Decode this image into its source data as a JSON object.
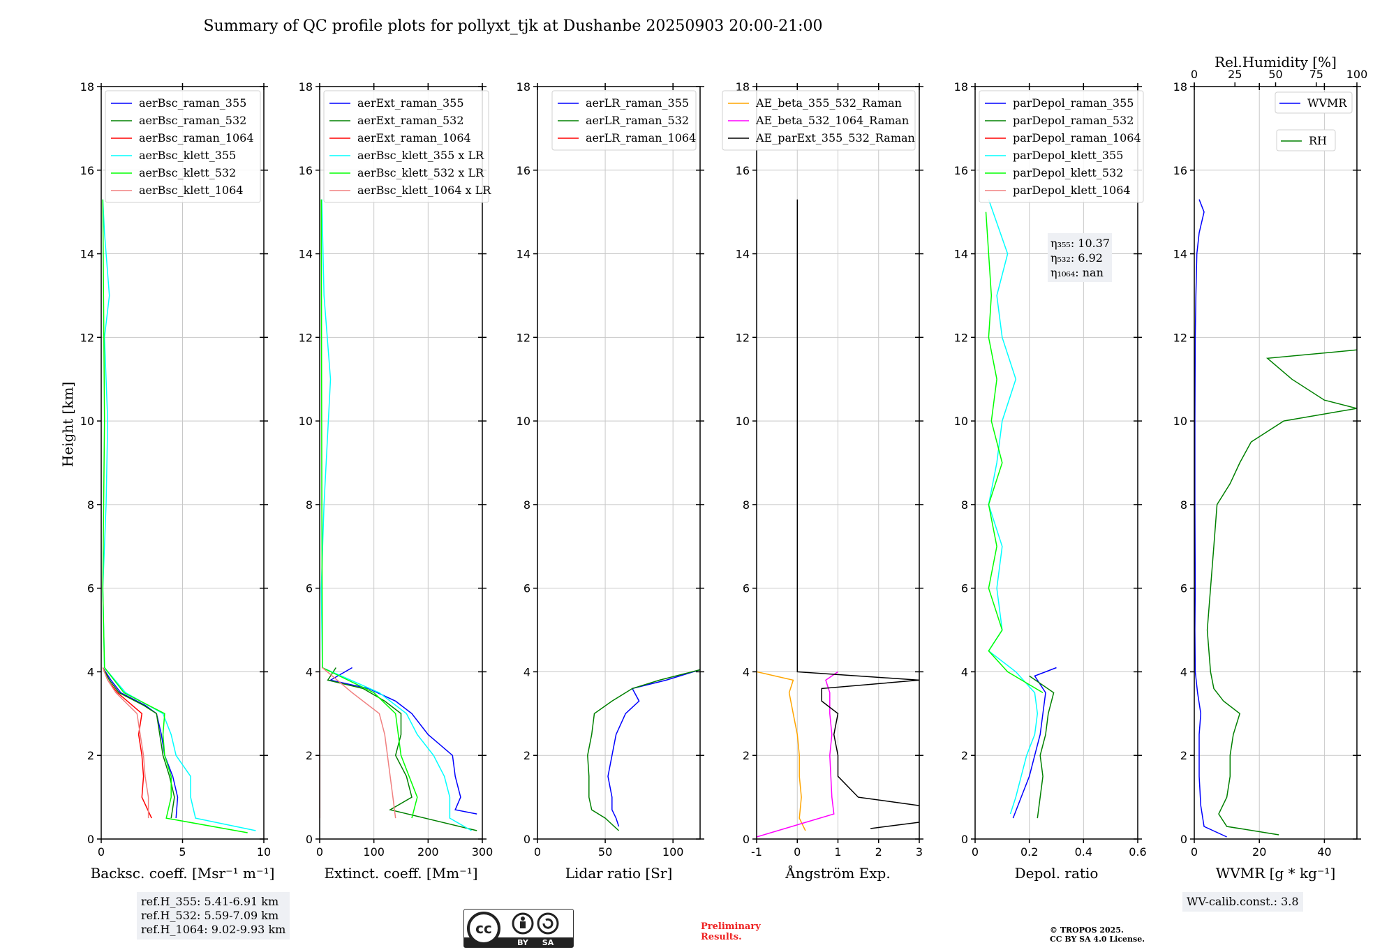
{
  "chart_data": {
    "type": "line",
    "title": "Summary of QC profile plots for pollyxt_tjk at Dushanbe 20250903 20:00-21:00",
    "ylabel": "Height [km]",
    "ylim": [
      0,
      18
    ],
    "yticks": [
      0,
      2,
      4,
      6,
      8,
      10,
      12,
      14,
      16,
      18
    ],
    "grid": true,
    "panels": [
      {
        "id": "bsc",
        "xlabel": "Backsc. coeff. [Msr⁻¹ m⁻¹]",
        "xlim": [
          0,
          10
        ],
        "xticks": [
          0,
          5,
          10
        ],
        "legend_loc": "upper-left",
        "series": [
          {
            "name": "aerBsc_raman_355",
            "color": "#0000ff",
            "h": [
              0.5,
              1.0,
              1.5,
              2.0,
              2.5,
              3.0,
              3.2,
              3.5,
              3.8,
              4.1
            ],
            "x": [
              4.6,
              4.7,
              4.4,
              3.9,
              3.7,
              3.4,
              2.7,
              1.2,
              0.6,
              0.1
            ]
          },
          {
            "name": "aerBsc_raman_532",
            "color": "#008000",
            "h": [
              0.5,
              1.0,
              1.5,
              2.0,
              2.5,
              3.0,
              3.2,
              3.5,
              3.8,
              4.1
            ],
            "x": [
              4.3,
              4.5,
              4.2,
              3.8,
              3.6,
              3.4,
              2.6,
              1.1,
              0.5,
              0.1
            ]
          },
          {
            "name": "aerBsc_raman_1064",
            "color": "#ff0000",
            "h": [
              0.5,
              1.0,
              1.5,
              2.0,
              2.5,
              3.0,
              3.5,
              3.8,
              4.1
            ],
            "x": [
              3.1,
              2.5,
              2.6,
              2.5,
              2.3,
              2.5,
              1.0,
              0.4,
              0.1
            ]
          },
          {
            "name": "aerBsc_klett_355",
            "color": "#00ffff",
            "h": [
              0.2,
              0.5,
              1.0,
              1.5,
              2.0,
              2.5,
              3.0,
              3.5,
              4.1,
              6.0,
              8.0,
              10.0,
              12.0,
              13.0,
              14.5,
              15.3
            ],
            "x": [
              9.5,
              5.8,
              5.5,
              5.5,
              4.6,
              4.3,
              3.8,
              1.5,
              0.2,
              0.1,
              0.3,
              0.4,
              0.2,
              0.5,
              0.2,
              0.1
            ]
          },
          {
            "name": "aerBsc_klett_532",
            "color": "#00ff00",
            "h": [
              0.15,
              0.5,
              1.0,
              1.5,
              2.0,
              2.5,
              3.0,
              3.5,
              4.1,
              6.0,
              10.0,
              15.3
            ],
            "x": [
              9.0,
              4.0,
              4.3,
              4.3,
              3.9,
              3.8,
              3.9,
              1.4,
              0.2,
              0.1,
              0.2,
              0.1
            ]
          },
          {
            "name": "aerBsc_klett_1064",
            "color": "#f08080",
            "h": [
              0.5,
              1.0,
              1.5,
              2.0,
              2.5,
              3.0,
              3.5,
              3.8,
              4.1
            ],
            "x": [
              2.9,
              2.9,
              2.7,
              2.6,
              2.4,
              2.2,
              0.9,
              0.4,
              0.1
            ]
          }
        ],
        "notes": []
      },
      {
        "id": "ext",
        "xlabel": "Extinct. coeff. [Mm⁻¹]",
        "xlim": [
          0,
          300
        ],
        "xticks": [
          0,
          100,
          200,
          300
        ],
        "legend_loc": "upper-left",
        "series": [
          {
            "name": "aerExt_raman_355",
            "color": "#0000ff",
            "h": [
              0.6,
              0.7,
              1.0,
              1.5,
              2.0,
              2.5,
              3.0,
              3.3,
              3.6,
              3.8,
              4.1
            ],
            "x": [
              290,
              250,
              260,
              250,
              245,
              200,
              170,
              140,
              90,
              20,
              60
            ]
          },
          {
            "name": "aerExt_raman_532",
            "color": "#008000",
            "h": [
              0.2,
              0.7,
              1.0,
              1.5,
              2.0,
              2.5,
              3.0,
              3.3,
              3.6,
              3.8,
              4.1
            ],
            "x": [
              290,
              130,
              170,
              160,
              140,
              150,
              150,
              120,
              80,
              15,
              30
            ]
          },
          {
            "name": "aerExt_raman_1064",
            "color": "#ff0000",
            "h": [
              0.5,
              4.0
            ],
            "x": [
              0,
              0
            ]
          },
          {
            "name": "aerBsc_klett_355 x LR",
            "color": "#00ffff",
            "h": [
              0.2,
              0.5,
              1.0,
              1.5,
              2.0,
              2.5,
              3.0,
              3.5,
              4.1,
              6.0,
              8.0,
              11.0,
              13.0,
              15.3
            ],
            "x": [
              280,
              240,
              240,
              230,
              210,
              180,
              160,
              110,
              5,
              3,
              8,
              20,
              8,
              4
            ]
          },
          {
            "name": "aerBsc_klett_532 x LR",
            "color": "#00ff00",
            "h": [
              0.5,
              1.0,
              1.5,
              2.0,
              2.5,
              3.0,
              3.5,
              4.1,
              8.0,
              15.3
            ],
            "x": [
              170,
              180,
              165,
              150,
              145,
              140,
              100,
              5,
              4,
              3
            ]
          },
          {
            "name": "aerBsc_klett_1064 x LR",
            "color": "#f08080",
            "h": [
              0.5,
              1.0,
              1.5,
              2.0,
              2.5,
              3.0,
              3.5,
              4.1
            ],
            "x": [
              140,
              135,
              130,
              125,
              120,
              110,
              60,
              5
            ]
          }
        ],
        "notes": []
      },
      {
        "id": "lr",
        "xlabel": "Lidar ratio [Sr]",
        "xlim": [
          0,
          120
        ],
        "xticks": [
          0,
          50,
          100
        ],
        "legend_loc": "upper-right",
        "series": [
          {
            "name": "aerLR_raman_355",
            "color": "#0000ff",
            "h": [
              0.3,
              0.5,
              0.7,
              1.0,
              1.5,
              2.0,
              2.5,
              3.0,
              3.3,
              3.6,
              3.8,
              4.05
            ],
            "x": [
              60,
              58,
              55,
              55,
              52,
              55,
              58,
              65,
              75,
              70,
              95,
              120
            ]
          },
          {
            "name": "aerLR_raman_532",
            "color": "#008000",
            "h": [
              0.2,
              0.5,
              0.7,
              1.0,
              1.5,
              2.0,
              2.5,
              3.0,
              3.3,
              3.6,
              3.8,
              4.05
            ],
            "x": [
              60,
              50,
              40,
              38,
              38,
              37,
              40,
              42,
              55,
              70,
              90,
              120
            ]
          },
          {
            "name": "aerLR_raman_1064",
            "color": "#ff0000",
            "h": [],
            "x": []
          }
        ],
        "notes": []
      },
      {
        "id": "ae",
        "xlabel": "Ångström Exp.",
        "xlim": [
          -1,
          3
        ],
        "xticks": [
          -1,
          0,
          1,
          2,
          3
        ],
        "legend_loc": "upper-right",
        "series": [
          {
            "name": "AE_beta_355_532_Raman",
            "color": "#ffa500",
            "h": [
              0.2,
              0.5,
              1.0,
              1.5,
              2.0,
              2.5,
              3.0,
              3.5,
              3.8,
              4.0
            ],
            "x": [
              0.2,
              0.05,
              0.1,
              0.05,
              0.05,
              0.0,
              -0.1,
              -0.2,
              -0.1,
              -1.0
            ]
          },
          {
            "name": "AE_beta_532_1064_Raman",
            "color": "#ff00ff",
            "h": [
              0.05,
              0.6,
              1.0,
              2.0,
              2.5,
              3.0,
              3.5,
              3.8,
              4.0
            ],
            "x": [
              -1.0,
              0.9,
              0.85,
              0.8,
              0.85,
              0.8,
              0.8,
              0.7,
              1.0
            ]
          },
          {
            "name": "AE_parExt_355_532_Raman",
            "color": "#000000",
            "h": [
              0.25,
              0.4,
              0.8,
              1.0,
              1.5,
              2.0,
              2.5,
              3.0,
              3.3,
              3.6,
              3.8,
              4.0,
              15.3
            ],
            "x": [
              1.8,
              3.0,
              3.0,
              1.5,
              1.0,
              1.0,
              0.9,
              1.0,
              0.6,
              0.6,
              3.0,
              0.0,
              0.0
            ]
          }
        ],
        "notes": []
      },
      {
        "id": "depol",
        "xlabel": "Depol. ratio",
        "xlim": [
          0,
          0.6
        ],
        "xticks": [
          0.0,
          0.2,
          0.4,
          0.6
        ],
        "legend_loc": "upper-left",
        "series": [
          {
            "name": "parDepol_raman_355",
            "color": "#0000ff",
            "h": [
              0.5,
              1.0,
              1.5,
              2.0,
              2.5,
              3.0,
              3.5,
              3.9,
              4.1
            ],
            "x": [
              0.14,
              0.17,
              0.2,
              0.22,
              0.24,
              0.25,
              0.26,
              0.22,
              0.3
            ]
          },
          {
            "name": "parDepol_raman_532",
            "color": "#008000",
            "h": [
              0.5,
              1.0,
              1.5,
              2.0,
              2.5,
              3.0,
              3.5,
              3.9
            ],
            "x": [
              0.23,
              0.24,
              0.25,
              0.24,
              0.26,
              0.27,
              0.29,
              0.2
            ]
          },
          {
            "name": "parDepol_raman_1064",
            "color": "#ff0000",
            "h": [],
            "x": []
          },
          {
            "name": "parDepol_klett_355",
            "color": "#00ffff",
            "h": [
              0.6,
              1.0,
              1.5,
              2.0,
              2.5,
              3.0,
              3.5,
              4.0,
              4.5,
              5.0,
              6.0,
              7.0,
              8.0,
              9.0,
              10.0,
              11.0,
              12.0,
              13.0,
              14.0,
              15.3
            ],
            "x": [
              0.13,
              0.15,
              0.17,
              0.19,
              0.22,
              0.23,
              0.22,
              0.15,
              0.05,
              0.1,
              0.08,
              0.1,
              0.05,
              0.08,
              0.1,
              0.15,
              0.1,
              0.08,
              0.12,
              0.05
            ]
          },
          {
            "name": "parDepol_klett_532",
            "color": "#00ff00",
            "h": [
              3.5,
              4.0,
              4.5,
              5.0,
              6.0,
              7.0,
              8.0,
              9.0,
              10.0,
              11.0,
              12.0,
              13.0,
              14.0,
              15.0
            ],
            "x": [
              0.25,
              0.12,
              0.05,
              0.1,
              0.05,
              0.08,
              0.05,
              0.1,
              0.06,
              0.08,
              0.05,
              0.06,
              0.05,
              0.04
            ]
          },
          {
            "name": "parDepol_klett_1064",
            "color": "#f08080",
            "h": [],
            "x": []
          }
        ],
        "notes": [
          "η₃₅₅: 10.37",
          "η₅₃₂: 6.92",
          "η₁₀₆₄: nan"
        ]
      },
      {
        "id": "wv",
        "xlabel": "WVMR [g * kg⁻¹]",
        "xlim": [
          0,
          50
        ],
        "xticks": [
          0,
          20,
          40
        ],
        "top_xlabel": "Rel.Humidity [%]",
        "top_xlim": [
          0,
          100
        ],
        "top_xticks": [
          0,
          25,
          50,
          75,
          100
        ],
        "series": [
          {
            "name": "WVMR",
            "color": "#0000ff",
            "axis": "bottom",
            "h": [
              0.05,
              0.3,
              0.8,
              1.5,
              2.0,
              2.5,
              3.0,
              3.5,
              4.0,
              5.0,
              6.0,
              8.0,
              10.0,
              12.0,
              13.0,
              14.0,
              14.5,
              15.0,
              15.3
            ],
            "x": [
              10.0,
              3.0,
              2.0,
              1.5,
              1.5,
              1.5,
              2.0,
              1.0,
              0.3,
              0.2,
              0.3,
              0.2,
              0.2,
              0.3,
              0.5,
              0.8,
              1.5,
              3.0,
              1.5
            ]
          },
          {
            "name": "RH",
            "color": "#008000",
            "axis": "top",
            "h": [
              0.1,
              0.3,
              0.6,
              1.0,
              1.5,
              2.0,
              2.5,
              3.0,
              3.3,
              3.6,
              4.0,
              5.0,
              6.0,
              7.0,
              8.0,
              8.5,
              9.0,
              9.5,
              10.0,
              10.3,
              10.5,
              11.0,
              11.5,
              11.7
            ],
            "x": [
              52,
              20,
              15,
              20,
              22,
              22,
              24,
              28,
              18,
              12,
              10,
              8,
              10,
              12,
              14,
              22,
              28,
              35,
              55,
              100,
              80,
              60,
              45,
              100
            ]
          }
        ],
        "legend": [
          "WVMR",
          "RH"
        ],
        "notes": [
          "WV-calib.const.: 3.8"
        ]
      }
    ]
  },
  "reference_heights": [
    "ref.H_355: 5.41-6.91 km",
    "ref.H_532: 5.59-7.09 km",
    "ref.H_1064: 9.02-9.93 km"
  ],
  "license_badge": [
    "cc",
    "BY",
    "SA"
  ],
  "preliminary": [
    "Preliminary",
    "Results."
  ],
  "copyright": [
    "© TROPOS 2025.",
    "CC BY SA 4.0 License."
  ]
}
